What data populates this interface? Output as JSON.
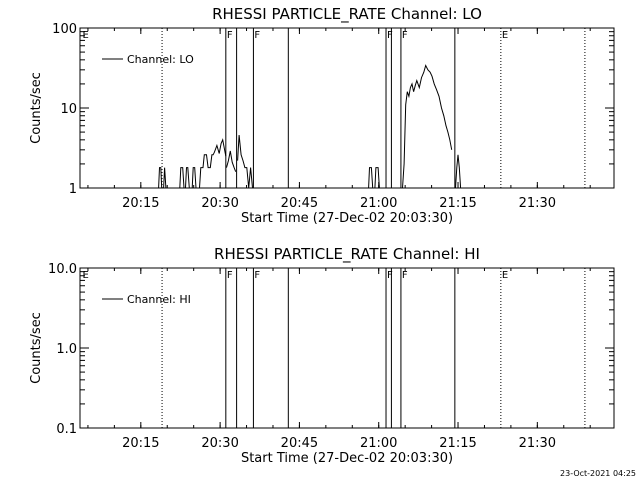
{
  "timestamp": "23-Oct-2021 04:25",
  "chart_data": [
    {
      "type": "line",
      "title": "RHESSI PARTICLE_RATE Channel: LO",
      "xlabel": "Start Time (27-Dec-02 20:03:30)",
      "ylabel": "Counts/sec",
      "yscale": "log",
      "xlim": [
        20.0583,
        21.7417
      ],
      "ylim": [
        1,
        100
      ],
      "xticks": [
        {
          "t": 20.25,
          "label": "20:15"
        },
        {
          "t": 20.5,
          "label": "20:30"
        },
        {
          "t": 20.75,
          "label": "20:45"
        },
        {
          "t": 21.0,
          "label": "21:00"
        },
        {
          "t": 21.25,
          "label": "21:15"
        },
        {
          "t": 21.5,
          "label": "21:30"
        }
      ],
      "yticks": [
        {
          "v": 1,
          "label": "1"
        },
        {
          "v": 10,
          "label": "10"
        },
        {
          "v": 100,
          "label": "100"
        }
      ],
      "legend": {
        "position": "top-left",
        "entries": [
          "Channel: LO"
        ]
      },
      "flags": [
        {
          "t": 20.063,
          "label": "E",
          "style": "none"
        },
        {
          "t": 20.317,
          "label": "",
          "style": "dotted"
        },
        {
          "t": 20.518,
          "label": "F",
          "style": "solid"
        },
        {
          "t": 20.552,
          "label": "",
          "style": "solid"
        },
        {
          "t": 20.605,
          "label": "F",
          "style": "solid"
        },
        {
          "t": 20.715,
          "label": "",
          "style": "solid"
        },
        {
          "t": 21.023,
          "label": "F",
          "style": "solid"
        },
        {
          "t": 21.04,
          "label": "",
          "style": "solid"
        },
        {
          "t": 21.07,
          "label": "F",
          "style": "solid"
        },
        {
          "t": 21.24,
          "label": "",
          "style": "solid"
        },
        {
          "t": 21.385,
          "label": "E",
          "style": "dotted"
        },
        {
          "t": 21.65,
          "label": "",
          "style": "dotted"
        }
      ],
      "series": [
        {
          "name": "Channel: LO",
          "segments": [
            [
              [
                20.306,
                1
              ],
              [
                20.309,
                1.8
              ],
              [
                20.313,
                1.8
              ],
              [
                20.316,
                1
              ],
              [
                20.322,
                1
              ],
              [
                20.325,
                1.8
              ],
              [
                20.329,
                1
              ]
            ],
            [
              [
                20.373,
                1
              ],
              [
                20.376,
                1.8
              ],
              [
                20.382,
                1.8
              ],
              [
                20.386,
                1
              ],
              [
                20.391,
                1
              ],
              [
                20.394,
                1.8
              ],
              [
                20.398,
                1.8
              ],
              [
                20.403,
                1
              ]
            ],
            [
              [
                20.412,
                1
              ],
              [
                20.415,
                1.8
              ],
              [
                20.42,
                1.8
              ],
              [
                20.424,
                1
              ],
              [
                20.435,
                1
              ],
              [
                20.439,
                1.8
              ],
              [
                20.446,
                1.8
              ],
              [
                20.45,
                2.6
              ],
              [
                20.457,
                2.6
              ],
              [
                20.462,
                1.8
              ],
              [
                20.469,
                1.8
              ],
              [
                20.474,
                2.6
              ],
              [
                20.478,
                2.6
              ],
              [
                20.482,
                2.8
              ],
              [
                20.49,
                3.4
              ],
              [
                20.497,
                2.7
              ],
              [
                20.503,
                3.6
              ],
              [
                20.508,
                4.0
              ],
              [
                20.514,
                3.0
              ],
              [
                20.518,
                2.5
              ]
            ],
            [
              [
                20.52,
                1.8
              ],
              [
                20.526,
                2.2
              ],
              [
                20.532,
                2.9
              ],
              [
                20.538,
                2.1
              ],
              [
                20.544,
                1.8
              ],
              [
                20.549,
                1.6
              ]
            ],
            [
              [
                20.555,
                2.2
              ],
              [
                20.56,
                4.6
              ],
              [
                20.566,
                2.6
              ],
              [
                20.572,
                2.2
              ],
              [
                20.578,
                1.8
              ],
              [
                20.584,
                1.8
              ],
              [
                20.59,
                1
              ],
              [
                20.596,
                1.8
              ],
              [
                20.602,
                1
              ]
            ],
            [
              [
                20.968,
                1
              ],
              [
                20.971,
                1.8
              ],
              [
                20.977,
                1.8
              ],
              [
                20.981,
                1
              ],
              [
                20.988,
                1
              ],
              [
                20.991,
                1.8
              ],
              [
                20.998,
                1.8
              ],
              [
                21.002,
                1
              ]
            ],
            [
              [
                21.075,
                1
              ],
              [
                21.08,
                2
              ],
              [
                21.085,
                11
              ],
              [
                21.09,
                16
              ],
              [
                21.095,
                14
              ],
              [
                21.1,
                18
              ],
              [
                21.105,
                20
              ],
              [
                21.11,
                16
              ],
              [
                21.115,
                19
              ],
              [
                21.12,
                22
              ],
              [
                21.128,
                18
              ],
              [
                21.135,
                24
              ],
              [
                21.142,
                28
              ],
              [
                21.148,
                34
              ],
              [
                21.155,
                30
              ],
              [
                21.162,
                28
              ],
              [
                21.168,
                25
              ],
              [
                21.175,
                20
              ],
              [
                21.182,
                17
              ],
              [
                21.19,
                14
              ],
              [
                21.198,
                10
              ],
              [
                21.205,
                8
              ],
              [
                21.212,
                6
              ],
              [
                21.218,
                5
              ],
              [
                21.224,
                4
              ],
              [
                21.23,
                3
              ]
            ],
            [
              [
                21.242,
                1
              ],
              [
                21.246,
                1.8
              ],
              [
                21.25,
                2.6
              ],
              [
                21.254,
                1.8
              ],
              [
                21.258,
                1
              ]
            ]
          ]
        }
      ]
    },
    {
      "type": "line",
      "title": "RHESSI PARTICLE_RATE Channel: HI",
      "xlabel": "Start Time (27-Dec-02 20:03:30)",
      "ylabel": "Counts/sec",
      "yscale": "log",
      "xlim": [
        20.0583,
        21.7417
      ],
      "ylim": [
        0.1,
        10
      ],
      "xticks": [
        {
          "t": 20.25,
          "label": "20:15"
        },
        {
          "t": 20.5,
          "label": "20:30"
        },
        {
          "t": 20.75,
          "label": "20:45"
        },
        {
          "t": 21.0,
          "label": "21:00"
        },
        {
          "t": 21.25,
          "label": "21:15"
        },
        {
          "t": 21.5,
          "label": "21:30"
        }
      ],
      "yticks": [
        {
          "v": 0.1,
          "label": "0.1"
        },
        {
          "v": 1,
          "label": "1.0"
        },
        {
          "v": 10,
          "label": "10.0"
        }
      ],
      "legend": {
        "position": "top-left",
        "entries": [
          "Channel: HI"
        ]
      },
      "flags": [
        {
          "t": 20.063,
          "label": "E",
          "style": "none"
        },
        {
          "t": 20.317,
          "label": "",
          "style": "dotted"
        },
        {
          "t": 20.518,
          "label": "F",
          "style": "solid"
        },
        {
          "t": 20.552,
          "label": "",
          "style": "solid"
        },
        {
          "t": 20.605,
          "label": "F",
          "style": "solid"
        },
        {
          "t": 20.715,
          "label": "",
          "style": "solid"
        },
        {
          "t": 21.023,
          "label": "F",
          "style": "solid"
        },
        {
          "t": 21.04,
          "label": "",
          "style": "solid"
        },
        {
          "t": 21.07,
          "label": "F",
          "style": "solid"
        },
        {
          "t": 21.24,
          "label": "",
          "style": "solid"
        },
        {
          "t": 21.385,
          "label": "E",
          "style": "dotted"
        },
        {
          "t": 21.65,
          "label": "",
          "style": "dotted"
        }
      ],
      "series": [
        {
          "name": "Channel: HI",
          "segments": []
        }
      ]
    }
  ]
}
